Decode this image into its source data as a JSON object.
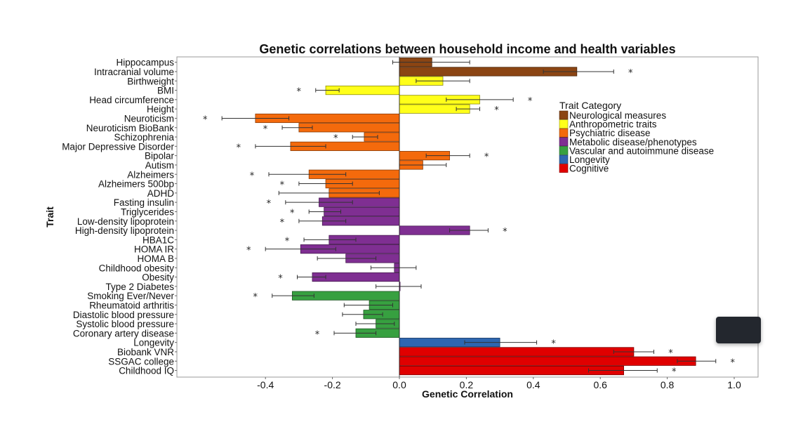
{
  "chart_data": {
    "type": "bar",
    "orientation": "horizontal",
    "title": "Genetic correlations between household income and health variables",
    "xlabel": "Genetic Correlation",
    "ylabel": "Trait",
    "xlim": [
      -0.65,
      1.07
    ],
    "xticks": [
      -0.4,
      -0.2,
      0.0,
      0.2,
      0.4,
      0.6,
      0.8,
      1.0
    ],
    "xtick_labels": [
      "-0.4",
      "-0.2",
      "0.0",
      "0.2",
      "0.4",
      "0.6",
      "0.8",
      "1.0"
    ],
    "grid": false,
    "legend": {
      "title": "Trait Category",
      "placement": "top-right",
      "entries": [
        {
          "name": "Neurological measures",
          "color": "#8B4513"
        },
        {
          "name": "Anthropometric traits",
          "color": "#FFFF1A"
        },
        {
          "name": "Psychiatric disease",
          "color": "#F46A0C"
        },
        {
          "name": "Metabolic disease/phenotypes",
          "color": "#7F2F92"
        },
        {
          "name": "Vascular and autoimmune disease",
          "color": "#37A040"
        },
        {
          "name": "Longevity",
          "color": "#2E66B0"
        },
        {
          "name": "Cognitive",
          "color": "#E00000"
        }
      ]
    },
    "bars": [
      {
        "trait": "Hippocampus",
        "category": "Neurological measures",
        "value": 0.097,
        "ci": [
          -0.02,
          0.21
        ],
        "significant": false
      },
      {
        "trait": "Intracranial volume",
        "category": "Neurological measures",
        "value": 0.53,
        "ci": [
          0.43,
          0.64
        ],
        "significant": true
      },
      {
        "trait": "Birthweight",
        "category": "Anthropometric traits",
        "value": 0.13,
        "ci": [
          0.05,
          0.21
        ],
        "significant": false
      },
      {
        "trait": "BMI",
        "category": "Anthropometric traits",
        "value": -0.22,
        "ci": [
          -0.25,
          -0.18
        ],
        "significant": true
      },
      {
        "trait": "Head circumference",
        "category": "Anthropometric traits",
        "value": 0.24,
        "ci": [
          0.14,
          0.34
        ],
        "significant": true
      },
      {
        "trait": "Height",
        "category": "Anthropometric traits",
        "value": 0.21,
        "ci": [
          0.17,
          0.24
        ],
        "significant": true
      },
      {
        "trait": "Neuroticism",
        "category": "Psychiatric disease",
        "value": -0.43,
        "ci": [
          -0.53,
          -0.33
        ],
        "significant": true
      },
      {
        "trait": "Neuroticism BioBank",
        "category": "Psychiatric disease",
        "value": -0.3,
        "ci": [
          -0.35,
          -0.26
        ],
        "significant": true
      },
      {
        "trait": "Schizophrenia",
        "category": "Psychiatric disease",
        "value": -0.105,
        "ci": [
          -0.14,
          -0.065
        ],
        "significant": true
      },
      {
        "trait": "Major Depressive Disorder",
        "category": "Psychiatric disease",
        "value": -0.325,
        "ci": [
          -0.43,
          -0.22
        ],
        "significant": true
      },
      {
        "trait": "Bipolar",
        "category": "Psychiatric disease",
        "value": 0.15,
        "ci": [
          0.08,
          0.21
        ],
        "significant": true
      },
      {
        "trait": "Autism",
        "category": "Psychiatric disease",
        "value": 0.07,
        "ci": [
          0.0,
          0.14
        ],
        "significant": false
      },
      {
        "trait": "Alzheimers",
        "category": "Psychiatric disease",
        "value": -0.27,
        "ci": [
          -0.39,
          -0.16
        ],
        "significant": true
      },
      {
        "trait": "Alzheimers 500bp",
        "category": "Psychiatric disease",
        "value": -0.22,
        "ci": [
          -0.3,
          -0.14
        ],
        "significant": true
      },
      {
        "trait": "ADHD",
        "category": "Psychiatric disease",
        "value": -0.21,
        "ci": [
          -0.36,
          -0.06
        ],
        "significant": false
      },
      {
        "trait": "Fasting insulin",
        "category": "Metabolic disease/phenotypes",
        "value": -0.24,
        "ci": [
          -0.34,
          -0.14
        ],
        "significant": true
      },
      {
        "trait": "Triglycerides",
        "category": "Metabolic disease/phenotypes",
        "value": -0.225,
        "ci": [
          -0.27,
          -0.175
        ],
        "significant": true
      },
      {
        "trait": "Low-density lipoprotein",
        "category": "Metabolic disease/phenotypes",
        "value": -0.23,
        "ci": [
          -0.3,
          -0.16
        ],
        "significant": true
      },
      {
        "trait": "High-density lipoprotein",
        "category": "Metabolic disease/phenotypes",
        "value": 0.21,
        "ci": [
          0.15,
          0.265
        ],
        "significant": true
      },
      {
        "trait": "HBA1C",
        "category": "Metabolic disease/phenotypes",
        "value": -0.21,
        "ci": [
          -0.285,
          -0.13
        ],
        "significant": true
      },
      {
        "trait": "HOMA IR",
        "category": "Metabolic disease/phenotypes",
        "value": -0.295,
        "ci": [
          -0.4,
          -0.19
        ],
        "significant": true
      },
      {
        "trait": "HOMA B",
        "category": "Metabolic disease/phenotypes",
        "value": -0.16,
        "ci": [
          -0.245,
          -0.07
        ],
        "significant": false
      },
      {
        "trait": "Childhood obesity",
        "category": "Metabolic disease/phenotypes",
        "value": -0.015,
        "ci": [
          -0.085,
          0.05
        ],
        "significant": false
      },
      {
        "trait": "Obesity",
        "category": "Metabolic disease/phenotypes",
        "value": -0.26,
        "ci": [
          -0.305,
          -0.22
        ],
        "significant": true
      },
      {
        "trait": "Type 2 Diabetes",
        "category": "Metabolic disease/phenotypes",
        "value": 0.0,
        "ci": [
          -0.07,
          0.065
        ],
        "significant": false
      },
      {
        "trait": "Smoking Ever/Never",
        "category": "Vascular and autoimmune disease",
        "value": -0.32,
        "ci": [
          -0.38,
          -0.255
        ],
        "significant": true
      },
      {
        "trait": "Rheumatoid arthritis",
        "category": "Vascular and autoimmune disease",
        "value": -0.09,
        "ci": [
          -0.165,
          -0.02
        ],
        "significant": false
      },
      {
        "trait": "Diastolic blood pressure",
        "category": "Vascular and autoimmune disease",
        "value": -0.107,
        "ci": [
          -0.17,
          -0.05
        ],
        "significant": false
      },
      {
        "trait": "Systolic blood pressure",
        "category": "Vascular and autoimmune disease",
        "value": -0.07,
        "ci": [
          -0.13,
          -0.015
        ],
        "significant": false
      },
      {
        "trait": "Coronary artery disease",
        "category": "Vascular and autoimmune disease",
        "value": -0.13,
        "ci": [
          -0.195,
          -0.07
        ],
        "significant": true
      },
      {
        "trait": "Longevity",
        "category": "Longevity",
        "value": 0.3,
        "ci": [
          0.195,
          0.41
        ],
        "significant": true
      },
      {
        "trait": "Biobank VNR",
        "category": "Cognitive",
        "value": 0.7,
        "ci": [
          0.64,
          0.76
        ],
        "significant": true
      },
      {
        "trait": "SSGAC college",
        "category": "Cognitive",
        "value": 0.885,
        "ci": [
          0.83,
          0.945
        ],
        "significant": true
      },
      {
        "trait": "Childhood IQ",
        "category": "Cognitive",
        "value": 0.67,
        "ci": [
          0.565,
          0.77
        ],
        "significant": true
      }
    ],
    "significance_marker": "*"
  },
  "overlay": {
    "type": "dark-popup"
  }
}
